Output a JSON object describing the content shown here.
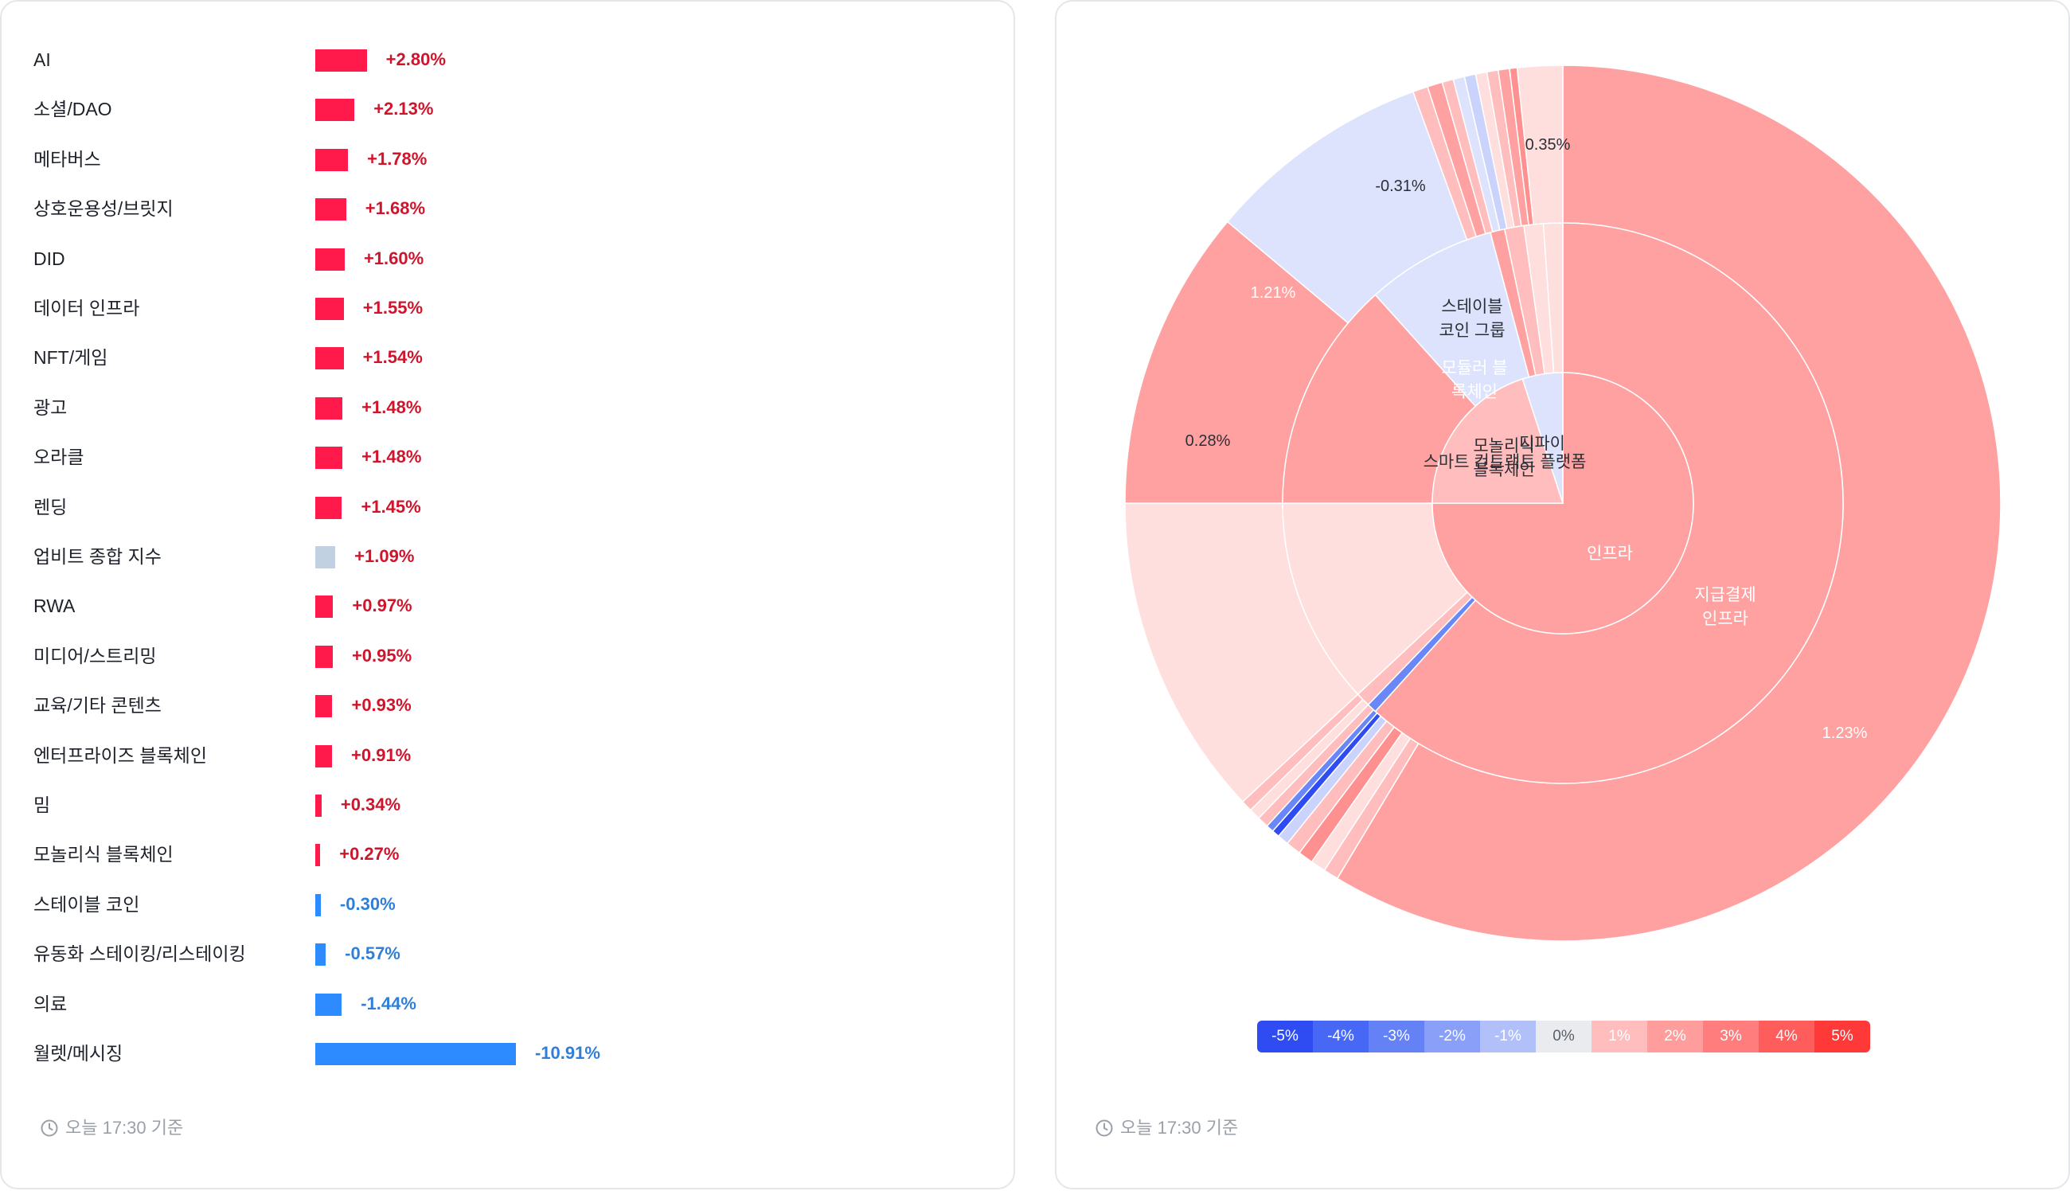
{
  "left_panel": {
    "timestamp": "오늘 17:30 기준",
    "icon": "clock-icon"
  },
  "right_panel": {
    "timestamp": "오늘 17:30 기준",
    "icon": "clock-icon"
  },
  "colors": {
    "positive": "#ff1a4b",
    "positive_text": "#d0142c",
    "negative": "#2e8bff",
    "negative_text": "#2f7fd8",
    "neutral_bar": "#c2d1e2"
  },
  "chart_data": [
    {
      "type": "bar",
      "orientation": "horizontal",
      "categories": [
        "AI",
        "소셜/DAO",
        "메타버스",
        "상호운용성/브릿지",
        "DID",
        "데이터 인프라",
        "NFT/게임",
        "광고",
        "오라클",
        "렌딩",
        "업비트 종합 지수",
        "RWA",
        "미디어/스트리밍",
        "교육/기타 콘텐츠",
        "엔터프라이즈 블록체인",
        "밈",
        "모놀리식 블록체인",
        "스테이블 코인",
        "유동화 스테이킹/리스테이킹",
        "의료",
        "월렛/메시징"
      ],
      "values": [
        2.8,
        2.13,
        1.78,
        1.68,
        1.6,
        1.55,
        1.54,
        1.48,
        1.48,
        1.45,
        1.09,
        0.97,
        0.95,
        0.93,
        0.91,
        0.34,
        0.27,
        -0.3,
        -0.57,
        -1.44,
        -10.91
      ],
      "value_labels": [
        "+2.80%",
        "+2.13%",
        "+1.78%",
        "+1.68%",
        "+1.60%",
        "+1.55%",
        "+1.54%",
        "+1.48%",
        "+1.48%",
        "+1.45%",
        "+1.09%",
        "+0.97%",
        "+0.95%",
        "+0.93%",
        "+0.91%",
        "+0.34%",
        "+0.27%",
        "-0.30%",
        "-0.57%",
        "-1.44%",
        "-10.91%"
      ],
      "highlight": "업비트 종합 지수"
    },
    {
      "type": "sunburst",
      "labels": [
        "인프라",
        "스마트 컨트랙트 플랫폼",
        "디파이",
        "지급결제 인프라",
        "모놀리식 블록체인",
        "모듈러 블록체인",
        "스테이블 코인 그룹"
      ],
      "value_labels": [
        "1.23%",
        "0.28%",
        "1.21%",
        "-0.31%",
        "0.35%"
      ],
      "legend": [
        "-5%",
        "-4%",
        "-3%",
        "-2%",
        "-1%",
        "0%",
        "1%",
        "2%",
        "3%",
        "4%",
        "5%"
      ],
      "legend_colors": [
        "#2f4cf2",
        "#4768f4",
        "#6482f6",
        "#8aa0f8",
        "#b2c0fa",
        "#e9ebef",
        "#ffbdbd",
        "#ff9c9c",
        "#ff7d7d",
        "#ff5c5c",
        "#ff3838"
      ]
    }
  ]
}
